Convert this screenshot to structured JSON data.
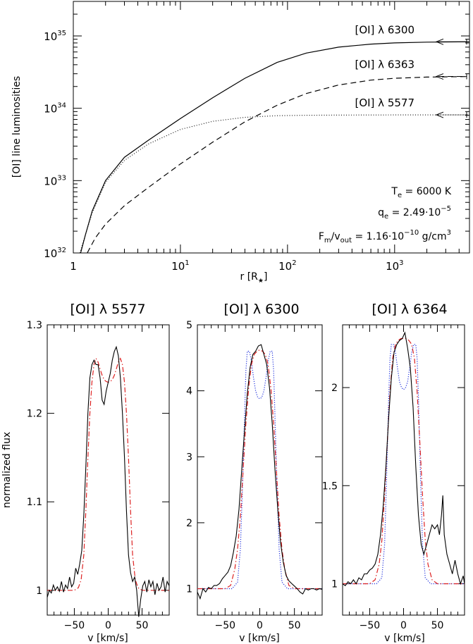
{
  "chart_data": [
    {
      "type": "line",
      "xlabel": "r [R",
      "xlabel_sub": "★",
      "xlabel_end": "]",
      "ylabel": "[OI] line luminosities",
      "xscale": "log",
      "yscale": "log",
      "xlim": [
        1,
        5000
      ],
      "ylim": [
        1e+32,
        3e+35
      ],
      "xticks": [
        {
          "value": 1,
          "label": "1"
        },
        {
          "value": 10,
          "label": "10",
          "exp": "1"
        },
        {
          "value": 100,
          "label": "10",
          "exp": "2"
        },
        {
          "value": 1000,
          "label": "10",
          "exp": "3"
        }
      ],
      "yticks": [
        {
          "value": 1e+32,
          "label": "10",
          "exp": "32"
        },
        {
          "value": 1e+33,
          "label": "10",
          "exp": "33"
        },
        {
          "value": 1e+34,
          "label": "10",
          "exp": "34"
        },
        {
          "value": 1e+35,
          "label": "10",
          "exp": "35"
        }
      ],
      "series": [
        {
          "name": "[OI] λ 6300",
          "style": "solid",
          "x": [
            1.17,
            1.3,
            1.5,
            2,
            3,
            5,
            10,
            20,
            40,
            80,
            150,
            300,
            600,
            1000,
            2000,
            5000
          ],
          "y": [
            1e+32,
            1.8e+32,
            3.8e+32,
            1e+33,
            2.1e+33,
            3.6e+33,
            7.2e+33,
            1.4e+34,
            2.6e+34,
            4.3e+34,
            5.8e+34,
            7e+34,
            7.7e+34,
            8e+34,
            8.2e+34,
            8.3e+34
          ]
        },
        {
          "name": "[OI] λ 6363",
          "style": "dashed",
          "x": [
            1.35,
            1.6,
            2,
            3,
            5,
            10,
            20,
            40,
            80,
            150,
            300,
            600,
            1000,
            2000,
            5000
          ],
          "y": [
            1e+32,
            1.6e+32,
            2.5e+32,
            4.5e+32,
            8e+32,
            1.7e+33,
            3.4e+33,
            6.5e+33,
            1.1e+34,
            1.6e+34,
            2.1e+34,
            2.45e+34,
            2.6e+34,
            2.7e+34,
            2.75e+34
          ]
        },
        {
          "name": "[OI] λ 5577",
          "style": "dotted",
          "x": [
            1.15,
            1.3,
            1.5,
            2,
            3,
            5,
            10,
            20,
            40,
            80,
            150,
            300,
            1000,
            5000
          ],
          "y": [
            1e+32,
            1.8e+32,
            3.6e+32,
            9.5e+32,
            1.9e+33,
            3.2e+33,
            5.1e+33,
            6.6e+33,
            7.5e+33,
            7.9e+33,
            8e+33,
            8.05e+33,
            8.1e+33,
            8.1e+33
          ]
        }
      ],
      "arrows": [
        {
          "style": "solid",
          "value": 8.3e+34
        },
        {
          "style": "dashed",
          "value": 2.75e+34
        },
        {
          "style": "dotted",
          "value": 8.1e+33
        }
      ],
      "annotations": {
        "te": {
          "main": "T",
          "sub": "e",
          "rest": " = 6000 K"
        },
        "qe": {
          "main": "q",
          "sub": "e",
          "rest": " = 2.49·10",
          "exp": "−5"
        },
        "fm": {
          "main": "F",
          "sub": "m",
          "mid": "/v",
          "sub2": "out",
          "rest": " = 1.16·10",
          "exp": "−10",
          "rest2": " g/cm",
          "exp2": "3"
        }
      }
    },
    {
      "type": "line",
      "title": "[OI] λ 5577",
      "xlabel": "v [km/s]",
      "ylabel": "normalized flux",
      "xlim": [
        -90,
        90
      ],
      "ylim": [
        0.972,
        1.3
      ],
      "xticks": [
        -50,
        0,
        50
      ],
      "yticks": [
        {
          "value": 1,
          "label": "1"
        },
        {
          "value": 1.1,
          "label": "1.1"
        },
        {
          "value": 1.2,
          "label": "1.2"
        },
        {
          "value": 1.3,
          "label": "1.3"
        }
      ],
      "series": [
        {
          "style": "observed",
          "color": "#000000",
          "x": [
            -90,
            -87,
            -84,
            -81,
            -78,
            -75,
            -72,
            -69,
            -66,
            -63,
            -60,
            -57,
            -54,
            -51,
            -48,
            -45,
            -42,
            -39,
            -36,
            -33,
            -30,
            -27,
            -24,
            -21,
            -18,
            -15,
            -12,
            -9,
            -6,
            -3,
            0,
            3,
            6,
            9,
            12,
            15,
            18,
            21,
            24,
            27,
            30,
            33,
            36,
            39,
            42,
            45,
            48,
            51,
            54,
            57,
            60,
            63,
            66,
            69,
            72,
            75,
            78,
            81,
            84,
            87,
            90
          ],
          "y": [
            0.992,
            1.0,
            0.997,
            1.006,
            1.0,
            1.004,
            0.999,
            1.01,
            0.998,
            1.006,
            1.002,
            1.015,
            1.004,
            1.008,
            1.025,
            1.018,
            1.03,
            1.045,
            1.085,
            1.14,
            1.2,
            1.24,
            1.255,
            1.26,
            1.255,
            1.255,
            1.24,
            1.215,
            1.21,
            1.225,
            1.235,
            1.245,
            1.26,
            1.27,
            1.275,
            1.265,
            1.24,
            1.2,
            1.15,
            1.09,
            1.04,
            1.02,
            1.01,
            1.015,
            1.0,
            0.97,
            0.99,
            1.005,
            1.01,
            0.998,
            1.012,
            1.004,
            1.01,
            0.995,
            1.008,
            1.0,
            1.004,
            1.015,
            0.998,
            1.01,
            1.005
          ]
        },
        {
          "style": "model-red",
          "color": "#dd2222",
          "x": [
            -90,
            -50,
            -44,
            -40,
            -36,
            -33,
            -30,
            -27,
            -24,
            -21,
            -18,
            -15,
            -12,
            -9,
            -6,
            -3,
            0,
            3,
            6,
            9,
            12,
            15,
            18,
            21,
            24,
            27,
            30,
            33,
            36,
            40,
            44,
            50,
            90
          ],
          "y": [
            1.0,
            1.0,
            1.003,
            1.012,
            1.04,
            1.09,
            1.15,
            1.2,
            1.235,
            1.255,
            1.262,
            1.258,
            1.25,
            1.243,
            1.238,
            1.236,
            1.235,
            1.236,
            1.238,
            1.243,
            1.25,
            1.258,
            1.262,
            1.255,
            1.235,
            1.2,
            1.15,
            1.09,
            1.04,
            1.012,
            1.003,
            1.0,
            1.0
          ]
        }
      ]
    },
    {
      "type": "line",
      "title": "[OI] λ 6300",
      "xlabel": "v [km/s]",
      "xlim": [
        -90,
        90
      ],
      "ylim": [
        0.6,
        5.0
      ],
      "xticks": [
        -50,
        0,
        50
      ],
      "yticks": [
        {
          "value": 1,
          "label": "1"
        },
        {
          "value": 2,
          "label": "2"
        },
        {
          "value": 3,
          "label": "3"
        },
        {
          "value": 4,
          "label": "4"
        },
        {
          "value": 5,
          "label": "5"
        }
      ],
      "series": [
        {
          "style": "observed",
          "color": "#000000",
          "x": [
            -90,
            -86,
            -82,
            -78,
            -74,
            -70,
            -66,
            -62,
            -58,
            -54,
            -50,
            -46,
            -42,
            -38,
            -34,
            -30,
            -26,
            -22,
            -18,
            -14,
            -10,
            -6,
            -2,
            2,
            6,
            10,
            14,
            18,
            22,
            26,
            30,
            34,
            38,
            42,
            46,
            50,
            54,
            58,
            62,
            66,
            70,
            74,
            78,
            82,
            86,
            90
          ],
          "y": [
            0.95,
            0.85,
            1.0,
            0.95,
            1.02,
            1.0,
            1.05,
            1.05,
            1.08,
            1.15,
            1.2,
            1.25,
            1.35,
            1.55,
            1.8,
            2.2,
            2.8,
            3.4,
            3.95,
            4.35,
            4.55,
            4.6,
            4.68,
            4.7,
            4.55,
            4.4,
            4.05,
            3.5,
            2.8,
            2.2,
            1.7,
            1.4,
            1.2,
            1.12,
            1.08,
            1.04,
            1.0,
            0.95,
            0.92,
            1.0,
            0.98,
            1.0,
            1.0,
            0.98,
            1.0,
            0.99
          ]
        },
        {
          "style": "model-red",
          "color": "#dd2222",
          "x": [
            -90,
            -50,
            -42,
            -36,
            -32,
            -28,
            -24,
            -20,
            -16,
            -12,
            -8,
            -4,
            0,
            4,
            8,
            12,
            16,
            20,
            24,
            28,
            32,
            36,
            42,
            50,
            90
          ],
          "y": [
            1.0,
            1.0,
            1.05,
            1.3,
            1.6,
            2.1,
            2.8,
            3.5,
            4.05,
            4.4,
            4.55,
            4.6,
            4.62,
            4.6,
            4.55,
            4.4,
            4.05,
            3.5,
            2.8,
            2.1,
            1.6,
            1.3,
            1.05,
            1.0,
            1.0
          ]
        },
        {
          "style": "model-blue",
          "color": "#2233dd",
          "x": [
            -90,
            -40,
            -32,
            -28,
            -25,
            -22,
            -20,
            -18,
            -15,
            -12,
            -9,
            -6,
            -3,
            0,
            3,
            6,
            9,
            12,
            15,
            18,
            20,
            22,
            25,
            28,
            32,
            40,
            90
          ],
          "y": [
            1.0,
            1.0,
            1.1,
            1.6,
            2.5,
            3.6,
            4.3,
            4.6,
            4.6,
            4.45,
            4.2,
            4.0,
            3.9,
            3.88,
            3.9,
            4.0,
            4.2,
            4.45,
            4.6,
            4.6,
            4.3,
            3.6,
            2.5,
            1.6,
            1.1,
            1.0,
            1.0
          ]
        }
      ]
    },
    {
      "type": "line",
      "title": "[OI] λ 6364",
      "xlabel": "v [km/s]",
      "xlim": [
        -90,
        90
      ],
      "ylim": [
        0.84,
        2.32
      ],
      "xticks": [
        -50,
        0,
        50
      ],
      "yticks": [
        {
          "value": 1,
          "label": "1"
        },
        {
          "value": 1.5,
          "label": "1.5"
        },
        {
          "value": 2,
          "label": "2"
        }
      ],
      "series": [
        {
          "style": "observed",
          "color": "#000000",
          "x": [
            -90,
            -86,
            -82,
            -78,
            -74,
            -70,
            -66,
            -62,
            -58,
            -54,
            -50,
            -46,
            -42,
            -38,
            -34,
            -30,
            -26,
            -22,
            -18,
            -14,
            -10,
            -6,
            -2,
            2,
            6,
            10,
            14,
            18,
            22,
            26,
            30,
            34,
            38,
            42,
            46,
            50,
            53,
            56,
            58,
            60,
            62,
            64,
            68,
            72,
            76,
            80,
            84,
            88,
            90
          ],
          "y": [
            1.0,
            0.99,
            1.01,
            1.0,
            1.02,
            1.0,
            1.03,
            1.02,
            1.05,
            1.05,
            1.07,
            1.08,
            1.1,
            1.15,
            1.25,
            1.4,
            1.6,
            1.85,
            2.05,
            2.18,
            2.22,
            2.24,
            2.25,
            2.28,
            2.2,
            2.1,
            1.9,
            1.6,
            1.35,
            1.2,
            1.15,
            1.2,
            1.25,
            1.3,
            1.28,
            1.3,
            1.25,
            1.35,
            1.45,
            1.25,
            1.2,
            1.15,
            1.1,
            1.05,
            1.12,
            1.05,
            1.0,
            1.04,
            1.0
          ]
        },
        {
          "style": "model-red",
          "color": "#dd2222",
          "x": [
            -90,
            -50,
            -42,
            -36,
            -32,
            -28,
            -24,
            -20,
            -16,
            -12,
            -8,
            -4,
            0,
            4,
            8,
            12,
            16,
            20,
            24,
            28,
            32,
            36,
            42,
            50,
            90
          ],
          "y": [
            1.0,
            1.0,
            1.02,
            1.1,
            1.22,
            1.45,
            1.72,
            1.98,
            2.15,
            2.22,
            2.24,
            2.25,
            2.25,
            2.25,
            2.24,
            2.22,
            2.15,
            1.98,
            1.72,
            1.45,
            1.22,
            1.1,
            1.02,
            1.0,
            1.0
          ]
        },
        {
          "style": "model-blue",
          "color": "#2233dd",
          "x": [
            -90,
            -40,
            -32,
            -28,
            -25,
            -22,
            -20,
            -18,
            -15,
            -12,
            -9,
            -6,
            -3,
            0,
            3,
            6,
            9,
            12,
            15,
            18,
            20,
            22,
            25,
            28,
            32,
            40,
            90
          ],
          "y": [
            1.0,
            1.0,
            1.03,
            1.2,
            1.55,
            1.95,
            2.15,
            2.22,
            2.22,
            2.18,
            2.1,
            2.03,
            2.0,
            1.99,
            2.0,
            2.03,
            2.1,
            2.18,
            2.22,
            2.22,
            2.15,
            1.95,
            1.55,
            1.2,
            1.03,
            1.0,
            1.0
          ]
        }
      ]
    }
  ]
}
